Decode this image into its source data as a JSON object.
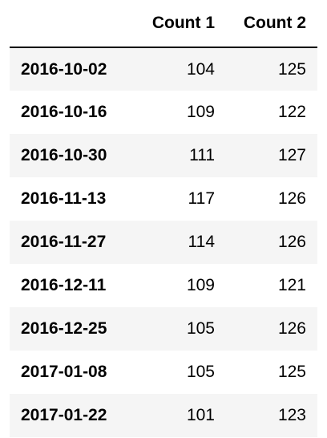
{
  "table": {
    "columns": [
      "",
      "Count 1",
      "Count 2"
    ],
    "rows": [
      {
        "index": "2016-10-02",
        "count1": "104",
        "count2": "125"
      },
      {
        "index": "2016-10-16",
        "count1": "109",
        "count2": "122"
      },
      {
        "index": "2016-10-30",
        "count1": "111",
        "count2": "127"
      },
      {
        "index": "2016-11-13",
        "count1": "117",
        "count2": "126"
      },
      {
        "index": "2016-11-27",
        "count1": "114",
        "count2": "126"
      },
      {
        "index": "2016-12-11",
        "count1": "109",
        "count2": "121"
      },
      {
        "index": "2016-12-25",
        "count1": "105",
        "count2": "126"
      },
      {
        "index": "2017-01-08",
        "count1": "105",
        "count2": "125"
      },
      {
        "index": "2017-01-22",
        "count1": "101",
        "count2": "123"
      }
    ]
  },
  "colors": {
    "stripe": "#f5f5f5",
    "background": "#ffffff",
    "header_rule": "#000000"
  }
}
